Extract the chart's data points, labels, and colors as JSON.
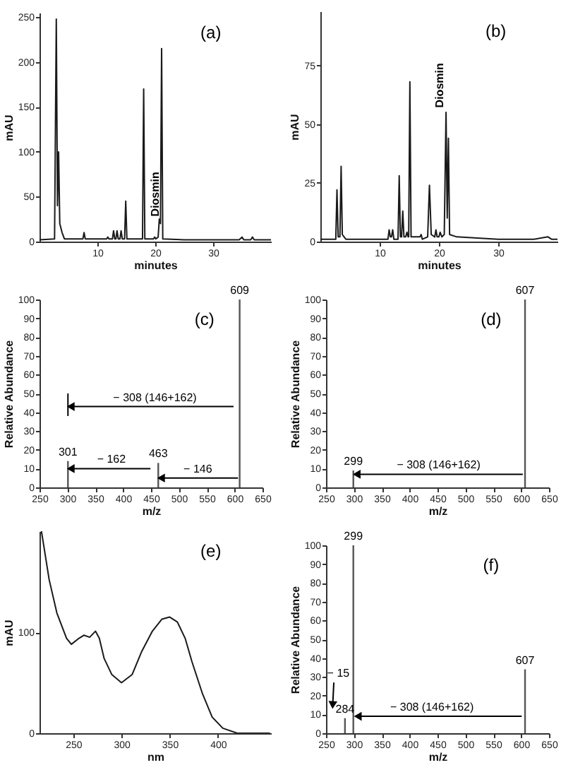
{
  "chart_data": [
    {
      "type": "line",
      "title": "(a)",
      "xlabel": "minutes",
      "ylabel": "mAU",
      "xlim": [
        0,
        40
      ],
      "xticks": [
        10,
        20,
        30
      ],
      "ylim": [
        0,
        255
      ],
      "yticks": [
        0,
        50,
        100,
        150,
        200,
        250
      ],
      "x": [
        0,
        2.6,
        2.9,
        3.1,
        3.3,
        3.5,
        3.9,
        4.3,
        7.5,
        7.7,
        7.9,
        11.6,
        11.8,
        12.0,
        12.6,
        12.8,
        13.0,
        13.2,
        13.4,
        13.6,
        13.9,
        14.1,
        14.3,
        14.7,
        14.9,
        15.1,
        17.8,
        18.0,
        18.2,
        19.7,
        19.9,
        20.1,
        20.5,
        20.7,
        20.9,
        21.1,
        21.3,
        25,
        34.5,
        35,
        35.3,
        36.5,
        36.8,
        37.1,
        40
      ],
      "series": [
        {
          "color": "#1a1a1a",
          "values": [
            2,
            3,
            248,
            40,
            100,
            20,
            10,
            3,
            3,
            10,
            3,
            3,
            5,
            3,
            3,
            12,
            3,
            3,
            12,
            3,
            3,
            12,
            3,
            3,
            45,
            3,
            3,
            170,
            3,
            3,
            5,
            3,
            5,
            25,
            20,
            215,
            3,
            2,
            2,
            5,
            2,
            2,
            5,
            2,
            2
          ]
        }
      ],
      "annotations": [
        {
          "text": "Diosmin",
          "x": 21.1,
          "y": 28
        }
      ]
    },
    {
      "type": "line",
      "title": "(b)",
      "xlabel": "minutes",
      "ylabel": "mAU",
      "xlim": [
        0,
        40
      ],
      "xticks": [
        10,
        20,
        30
      ],
      "ylim": [
        0,
        98
      ],
      "yticks": [
        0,
        25,
        50,
        75
      ],
      "x": [
        0,
        2.6,
        2.8,
        3.0,
        3.3,
        3.5,
        3.7,
        4.0,
        4.3,
        11.4,
        11.6,
        11.8,
        12.0,
        12.2,
        12.4,
        13.1,
        13.3,
        13.5,
        13.7,
        13.9,
        14.1,
        14.4,
        14.6,
        14.8,
        14.9,
        15.1,
        15.3,
        16.8,
        17.0,
        17.2,
        18.1,
        18.4,
        18.7,
        19.3,
        19.5,
        19.7,
        20.0,
        20.2,
        20.5,
        20.9,
        21.2,
        21.4,
        21.6,
        21.8,
        23,
        30,
        36,
        38.4,
        39,
        40
      ],
      "series": [
        {
          "color": "#1a1a1a",
          "values": [
            1,
            1,
            22,
            2,
            2,
            32,
            3,
            2,
            1,
            1,
            5,
            2,
            2,
            5,
            1,
            1,
            28,
            2,
            2,
            13,
            2,
            2,
            4,
            2,
            2,
            68,
            2,
            2,
            3,
            1,
            2,
            24,
            3,
            2,
            5,
            2,
            2,
            4,
            2,
            3,
            55,
            10,
            44,
            3,
            2,
            1,
            1,
            2,
            1,
            1
          ]
        }
      ],
      "annotations": [
        {
          "text": "Diosmin",
          "x": 21.2,
          "y": 57
        }
      ]
    },
    {
      "type": "bar",
      "title": "(c)",
      "xlabel": "m/z",
      "ylabel": "Relative Abundance",
      "xlim": [
        250,
        650
      ],
      "xticks": [
        250,
        300,
        350,
        400,
        450,
        500,
        550,
        600,
        650
      ],
      "ylim": [
        0,
        100
      ],
      "yticks": [
        0,
        10,
        20,
        30,
        40,
        50,
        60,
        70,
        80,
        90,
        100
      ],
      "series": [
        {
          "type": "bar",
          "color": "#555555",
          "x": [
            301,
            463,
            609
          ],
          "values": [
            14,
            13,
            100
          ]
        },
        {
          "type": "line",
          "color": "#000000",
          "x": [
            598,
            306
          ],
          "values": [
            43,
            43
          ],
          "marker": "triangle"
        },
        {
          "type": "line",
          "color": "#000000",
          "x": [
            301,
            301
          ],
          "values": [
            38,
            50
          ]
        },
        {
          "type": "line",
          "color": "#000000",
          "x": [
            449,
            306
          ],
          "values": [
            10,
            10
          ],
          "marker": "triangle"
        },
        {
          "type": "line",
          "color": "#000000",
          "x": [
            606,
            468
          ],
          "values": [
            5,
            5
          ],
          "marker": "triangle"
        }
      ],
      "annotations": [
        {
          "text": "301",
          "x": 301,
          "y": 14
        },
        {
          "text": "463",
          "x": 463,
          "y": 13
        },
        {
          "text": "609",
          "x": 609,
          "y": 100
        },
        {
          "text": "− 308 (146+162)",
          "x": 457,
          "y": 43
        },
        {
          "text": "− 162",
          "x": 379,
          "y": 10
        },
        {
          "text": "− 146",
          "x": 534,
          "y": 5
        }
      ]
    },
    {
      "type": "bar",
      "title": "(d)",
      "xlabel": "m/z",
      "ylabel": "Relative Abundance",
      "xlim": [
        250,
        650
      ],
      "xticks": [
        250,
        300,
        350,
        400,
        450,
        500,
        550,
        600,
        650
      ],
      "ylim": [
        0,
        100
      ],
      "yticks": [
        0,
        10,
        20,
        30,
        40,
        50,
        60,
        70,
        80,
        90,
        100
      ],
      "series": [
        {
          "type": "bar",
          "color": "#555555",
          "x": [
            299,
            607
          ],
          "values": [
            9,
            100
          ]
        },
        {
          "type": "line",
          "color": "#000000",
          "x": [
            603,
            305
          ],
          "values": [
            7,
            7
          ],
          "marker": "triangle"
        }
      ],
      "annotations": [
        {
          "text": "299",
          "x": 299,
          "y": 9
        },
        {
          "text": "607",
          "x": 607,
          "y": 100
        },
        {
          "text": "− 308  (146+162)",
          "x": 452,
          "y": 7
        }
      ]
    },
    {
      "type": "line",
      "title": "(e)",
      "xlabel": "nm",
      "ylabel": "mAU",
      "xlim": [
        215,
        455
      ],
      "xticks": [
        250,
        300,
        350,
        400
      ],
      "ylim": [
        0,
        200
      ],
      "yticks": [
        0,
        100
      ],
      "x": [
        217,
        225,
        233,
        243,
        248,
        256,
        261,
        267,
        273,
        277,
        282,
        290,
        300,
        311,
        321,
        332,
        342,
        350,
        358,
        366,
        373,
        384,
        394,
        405,
        420,
        454
      ],
      "series": [
        {
          "color": "#1a1a1a",
          "values": [
            200,
            152,
            119,
            94,
            88,
            94,
            97,
            95,
            101,
            94,
            74,
            58,
            50,
            58,
            81,
            101,
            113,
            115,
            110,
            94,
            71,
            39,
            16,
            5,
            0,
            0
          ]
        }
      ]
    },
    {
      "type": "bar",
      "title": "(f)",
      "xlabel": "m/z",
      "ylabel": "Relative Abundance",
      "xlim": [
        250,
        650
      ],
      "xticks": [
        250,
        300,
        350,
        400,
        450,
        500,
        550,
        600,
        650
      ],
      "ylim": [
        0,
        100
      ],
      "yticks": [
        0,
        10,
        20,
        30,
        40,
        50,
        60,
        70,
        80,
        90,
        100
      ],
      "series": [
        {
          "type": "bar",
          "color": "#555555",
          "x": [
            284,
            299,
            607
          ],
          "values": [
            8,
            100,
            34
          ]
        },
        {
          "type": "line",
          "color": "#000000",
          "x": [
            601,
            307
          ],
          "values": [
            9,
            9
          ],
          "marker": "triangle"
        },
        {
          "type": "line",
          "color": "#000000",
          "x": [
            264,
            262
          ],
          "values": [
            27,
            15
          ],
          "marker": "triangle"
        }
      ],
      "annotations": [
        {
          "text": "284",
          "x": 284,
          "y": 8
        },
        {
          "text": "299",
          "x": 299,
          "y": 100
        },
        {
          "text": "607",
          "x": 607,
          "y": 34
        },
        {
          "text": "− 308 (146+162)",
          "x": 440,
          "y": 9
        },
        {
          "text": "− 15",
          "x": 272,
          "y": 27
        }
      ]
    }
  ]
}
